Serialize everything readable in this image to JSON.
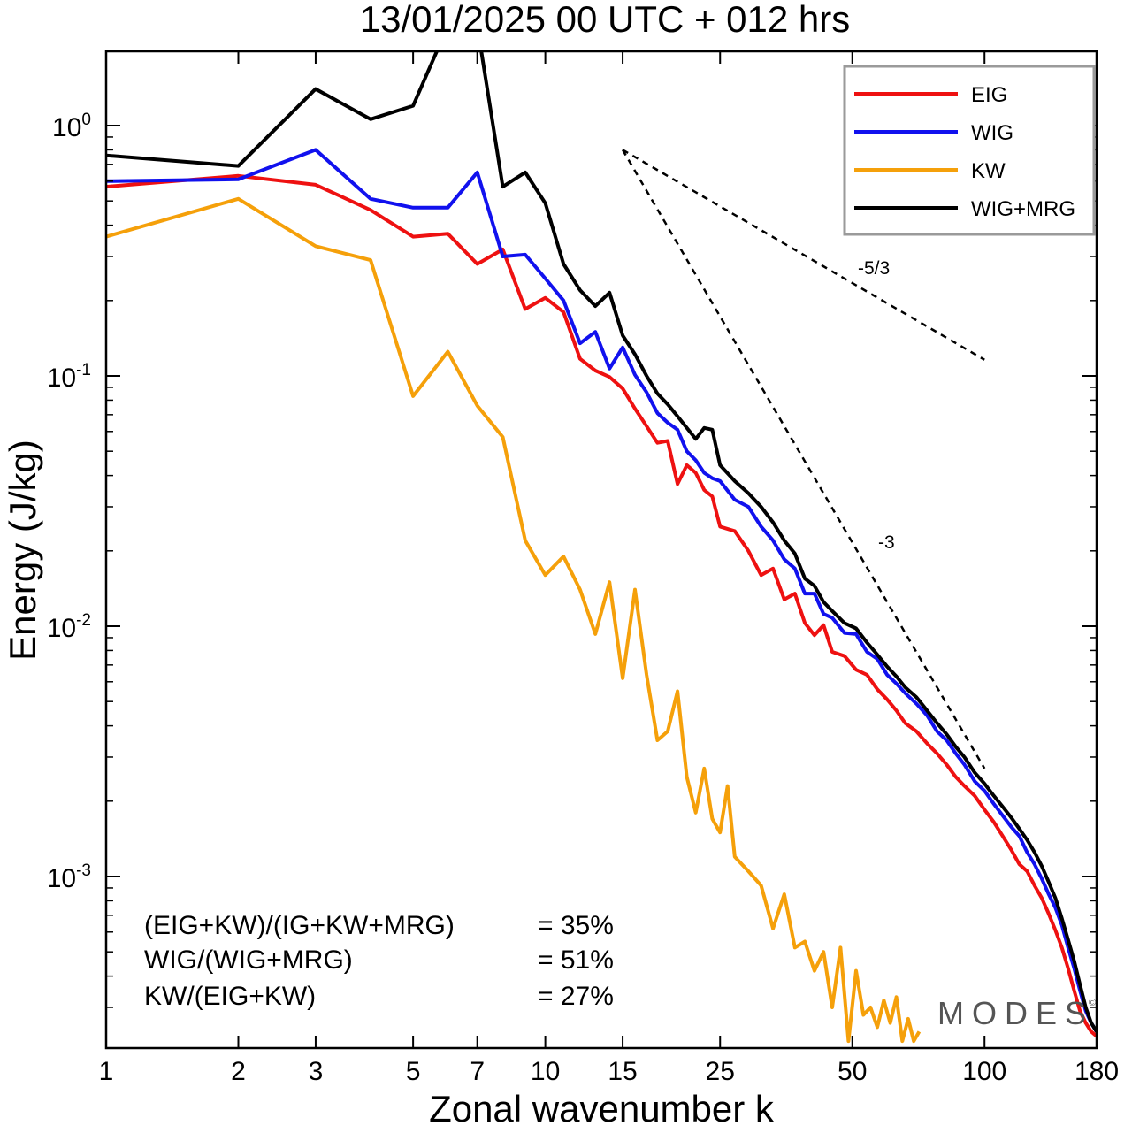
{
  "chart_data": {
    "type": "line",
    "title": "13/01/2025  00 UTC  + 012 hrs",
    "xlabel": "Zonal wavenumber k",
    "ylabel": "Energy (J/kg)",
    "xscale": "log",
    "yscale": "log",
    "xlim": [
      1,
      180
    ],
    "ylim": [
      0.00022,
      2.0
    ],
    "x_ticks": [
      "1",
      "2",
      "3",
      "5",
      "7",
      "10",
      "15",
      "25",
      "50",
      "100",
      "180"
    ],
    "y_ticks": [
      {
        "value": 1,
        "base": "10",
        "exp": "0"
      },
      {
        "value": 0.1,
        "base": "10",
        "exp": "-1"
      },
      {
        "value": 0.01,
        "base": "10",
        "exp": "-2"
      },
      {
        "value": 0.001,
        "base": "10",
        "exp": "-3"
      }
    ],
    "legend_position": "top-right",
    "series": [
      {
        "name": "EIG",
        "color": "#ee1111",
        "points": [
          [
            1,
            0.57
          ],
          [
            2,
            0.63
          ],
          [
            3,
            0.58
          ],
          [
            4,
            0.46
          ],
          [
            5,
            0.36
          ],
          [
            6,
            0.37
          ],
          [
            7,
            0.28
          ],
          [
            8,
            0.32
          ],
          [
            9,
            0.185
          ],
          [
            10,
            0.205
          ],
          [
            11,
            0.18
          ],
          [
            12,
            0.117
          ],
          [
            13,
            0.105
          ],
          [
            14,
            0.099
          ],
          [
            15,
            0.089
          ],
          [
            16,
            0.074
          ],
          [
            17,
            0.063
          ],
          [
            18,
            0.054
          ],
          [
            19,
            0.055
          ],
          [
            20,
            0.037
          ],
          [
            21,
            0.044
          ],
          [
            22,
            0.041
          ],
          [
            23,
            0.035
          ],
          [
            24,
            0.033
          ],
          [
            25,
            0.025
          ],
          [
            27,
            0.024
          ],
          [
            29,
            0.02
          ],
          [
            31,
            0.016
          ],
          [
            33,
            0.017
          ],
          [
            35,
            0.0128
          ],
          [
            37,
            0.0135
          ],
          [
            39,
            0.0103
          ],
          [
            41,
            0.0092
          ],
          [
            43,
            0.0101
          ],
          [
            45,
            0.0079
          ],
          [
            48,
            0.0076
          ],
          [
            51,
            0.0067
          ],
          [
            54,
            0.0064
          ],
          [
            57,
            0.0056
          ],
          [
            60,
            0.0051
          ],
          [
            63,
            0.0046
          ],
          [
            66,
            0.0041
          ],
          [
            70,
            0.0038
          ],
          [
            74,
            0.0034
          ],
          [
            78,
            0.0031
          ],
          [
            82,
            0.0028
          ],
          [
            86,
            0.0025
          ],
          [
            90,
            0.0023
          ],
          [
            95,
            0.0021
          ],
          [
            100,
            0.00185
          ],
          [
            105,
            0.00165
          ],
          [
            110,
            0.00145
          ],
          [
            115,
            0.00128
          ],
          [
            120,
            0.00112
          ],
          [
            125,
            0.00105
          ],
          [
            130,
            0.00092
          ],
          [
            135,
            0.00082
          ],
          [
            140,
            0.00071
          ],
          [
            145,
            0.00061
          ],
          [
            150,
            0.00052
          ],
          [
            155,
            0.00043
          ],
          [
            160,
            0.00035
          ],
          [
            165,
            0.00029
          ],
          [
            170,
            0.00026
          ],
          [
            175,
            0.00024
          ],
          [
            180,
            0.00023
          ]
        ]
      },
      {
        "name": "WIG",
        "color": "#1111ee",
        "points": [
          [
            1,
            0.6
          ],
          [
            2,
            0.61
          ],
          [
            3,
            0.8
          ],
          [
            4,
            0.51
          ],
          [
            5,
            0.47
          ],
          [
            6,
            0.47
          ],
          [
            7,
            0.65
          ],
          [
            8,
            0.3
          ],
          [
            9,
            0.305
          ],
          [
            10,
            0.245
          ],
          [
            11,
            0.2
          ],
          [
            12,
            0.135
          ],
          [
            13,
            0.15
          ],
          [
            14,
            0.107
          ],
          [
            15,
            0.13
          ],
          [
            16,
            0.101
          ],
          [
            17,
            0.086
          ],
          [
            18,
            0.071
          ],
          [
            19,
            0.065
          ],
          [
            20,
            0.061
          ],
          [
            21,
            0.05
          ],
          [
            22,
            0.046
          ],
          [
            23,
            0.041
          ],
          [
            24,
            0.039
          ],
          [
            25,
            0.038
          ],
          [
            27,
            0.032
          ],
          [
            29,
            0.03
          ],
          [
            31,
            0.025
          ],
          [
            33,
            0.022
          ],
          [
            35,
            0.0185
          ],
          [
            37,
            0.017
          ],
          [
            39,
            0.0135
          ],
          [
            41,
            0.0135
          ],
          [
            43,
            0.0112
          ],
          [
            45,
            0.0108
          ],
          [
            48,
            0.0094
          ],
          [
            51,
            0.0093
          ],
          [
            54,
            0.0079
          ],
          [
            57,
            0.0074
          ],
          [
            60,
            0.0064
          ],
          [
            63,
            0.0059
          ],
          [
            66,
            0.0054
          ],
          [
            70,
            0.0049
          ],
          [
            74,
            0.0044
          ],
          [
            78,
            0.0038
          ],
          [
            82,
            0.0035
          ],
          [
            86,
            0.0031
          ],
          [
            90,
            0.0028
          ],
          [
            95,
            0.0024
          ],
          [
            100,
            0.0022
          ],
          [
            105,
            0.00195
          ],
          [
            110,
            0.00175
          ],
          [
            115,
            0.00158
          ],
          [
            120,
            0.00145
          ],
          [
            125,
            0.00125
          ],
          [
            130,
            0.00112
          ],
          [
            135,
            0.00098
          ],
          [
            140,
            0.00085
          ],
          [
            145,
            0.00075
          ],
          [
            150,
            0.00064
          ],
          [
            155,
            0.00052
          ],
          [
            160,
            0.00043
          ],
          [
            165,
            0.00035
          ],
          [
            170,
            0.00029
          ],
          [
            175,
            0.00026
          ],
          [
            180,
            0.00024
          ]
        ]
      },
      {
        "name": "KW",
        "color": "#f5a00a",
        "points": [
          [
            1,
            0.36
          ],
          [
            2,
            0.51
          ],
          [
            3,
            0.33
          ],
          [
            4,
            0.29
          ],
          [
            5,
            0.083
          ],
          [
            6,
            0.125
          ],
          [
            7,
            0.076
          ],
          [
            8,
            0.057
          ],
          [
            9,
            0.022
          ],
          [
            10,
            0.016
          ],
          [
            11,
            0.019
          ],
          [
            12,
            0.014
          ],
          [
            13,
            0.0093
          ],
          [
            14,
            0.015
          ],
          [
            15,
            0.0062
          ],
          [
            16,
            0.014
          ],
          [
            17,
            0.0064
          ],
          [
            18,
            0.0035
          ],
          [
            19,
            0.0038
          ],
          [
            20,
            0.0055
          ],
          [
            21,
            0.0025
          ],
          [
            22,
            0.0018
          ],
          [
            23,
            0.0027
          ],
          [
            24,
            0.0017
          ],
          [
            25,
            0.0015
          ],
          [
            26,
            0.0023
          ],
          [
            27,
            0.0012
          ],
          [
            29,
            0.00105
          ],
          [
            31,
            0.00092
          ],
          [
            33,
            0.00062
          ],
          [
            35,
            0.00085
          ],
          [
            37,
            0.00052
          ],
          [
            39,
            0.00055
          ],
          [
            41,
            0.00042
          ],
          [
            43,
            0.0005
          ],
          [
            45,
            0.0003
          ],
          [
            47,
            0.00052
          ],
          [
            49,
            0.00022
          ],
          [
            51,
            0.00042
          ],
          [
            53,
            0.00028
          ],
          [
            55,
            0.0003
          ],
          [
            57,
            0.00025
          ],
          [
            59,
            0.00032
          ],
          [
            61,
            0.00026
          ],
          [
            63,
            0.00033
          ],
          [
            65,
            0.00022
          ],
          [
            67,
            0.00027
          ],
          [
            69,
            0.00022
          ],
          [
            71,
            0.00024
          ]
        ]
      },
      {
        "name": "WIG+MRG",
        "color": "#000000",
        "points": [
          [
            1,
            0.76
          ],
          [
            2,
            0.69
          ],
          [
            3,
            1.4
          ],
          [
            4,
            1.06
          ],
          [
            5,
            1.2
          ],
          [
            6,
            2.5
          ],
          [
            7,
            2.5
          ],
          [
            8,
            0.57
          ],
          [
            9,
            0.65
          ],
          [
            10,
            0.49
          ],
          [
            11,
            0.28
          ],
          [
            12,
            0.22
          ],
          [
            13,
            0.19
          ],
          [
            14,
            0.215
          ],
          [
            15,
            0.145
          ],
          [
            16,
            0.122
          ],
          [
            17,
            0.1
          ],
          [
            18,
            0.085
          ],
          [
            19,
            0.077
          ],
          [
            20,
            0.069
          ],
          [
            21,
            0.062
          ],
          [
            22,
            0.056
          ],
          [
            23,
            0.062
          ],
          [
            24,
            0.061
          ],
          [
            25,
            0.044
          ],
          [
            27,
            0.038
          ],
          [
            29,
            0.034
          ],
          [
            31,
            0.03
          ],
          [
            33,
            0.026
          ],
          [
            35,
            0.022
          ],
          [
            37,
            0.0195
          ],
          [
            39,
            0.0155
          ],
          [
            41,
            0.0145
          ],
          [
            43,
            0.0125
          ],
          [
            45,
            0.0115
          ],
          [
            48,
            0.0103
          ],
          [
            51,
            0.0098
          ],
          [
            54,
            0.0086
          ],
          [
            57,
            0.0077
          ],
          [
            60,
            0.0069
          ],
          [
            63,
            0.0063
          ],
          [
            66,
            0.0057
          ],
          [
            70,
            0.0052
          ],
          [
            74,
            0.0046
          ],
          [
            78,
            0.0041
          ],
          [
            82,
            0.0037
          ],
          [
            86,
            0.0033
          ],
          [
            90,
            0.003
          ],
          [
            95,
            0.0026
          ],
          [
            100,
            0.00235
          ],
          [
            105,
            0.0021
          ],
          [
            110,
            0.0019
          ],
          [
            115,
            0.00172
          ],
          [
            120,
            0.00155
          ],
          [
            125,
            0.0014
          ],
          [
            130,
            0.00125
          ],
          [
            135,
            0.0011
          ],
          [
            140,
            0.00095
          ],
          [
            145,
            0.00082
          ],
          [
            150,
            0.00068
          ],
          [
            155,
            0.00056
          ],
          [
            160,
            0.00046
          ],
          [
            165,
            0.00037
          ],
          [
            170,
            0.0003
          ],
          [
            175,
            0.00026
          ],
          [
            180,
            0.00024
          ]
        ]
      }
    ],
    "reference_lines": [
      {
        "label": "-5/3",
        "points": [
          [
            15,
            0.8
          ],
          [
            100,
            0.116
          ]
        ]
      },
      {
        "label": "-3",
        "points": [
          [
            15,
            0.8
          ],
          [
            100,
            0.0027
          ]
        ]
      }
    ]
  },
  "annotations": {
    "stats": [
      {
        "label": "(EIG+KW)/(IG+KW+MRG)",
        "value": "= 35%"
      },
      {
        "label": "WIG/(WIG+MRG)",
        "value": "= 51%"
      },
      {
        "label": "KW/(EIG+KW)",
        "value": "= 27%"
      }
    ],
    "watermark": "MODES",
    "copyright": "©"
  }
}
